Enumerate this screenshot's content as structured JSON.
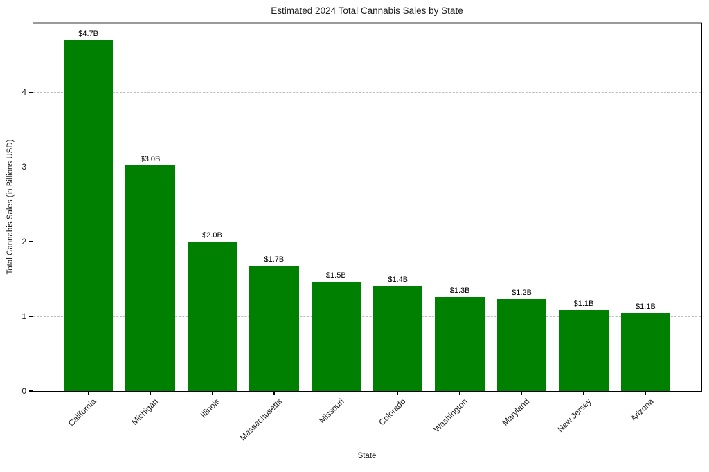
{
  "chart_data": {
    "type": "bar",
    "title": "Estimated 2024 Total Cannabis Sales by State",
    "xlabel": "State",
    "ylabel": "Total Cannabis Sales (in Billions USD)",
    "categories": [
      "California",
      "Michigan",
      "Illinois",
      "Massachusetts",
      "Missouri",
      "Colorado",
      "Washington",
      "Maryland",
      "New Jersey",
      "Arizona"
    ],
    "values": [
      4.7,
      3.02,
      2.0,
      1.68,
      1.46,
      1.41,
      1.26,
      1.23,
      1.08,
      1.05
    ],
    "bar_labels": [
      "$4.7B",
      "$3.0B",
      "$2.0B",
      "$1.7B",
      "$1.5B",
      "$1.4B",
      "$1.3B",
      "$1.2B",
      "$1.1B",
      "$1.1B"
    ],
    "yticks": [
      0,
      1,
      2,
      3,
      4
    ],
    "ylim": [
      0,
      4.93
    ],
    "bar_color": "#008000",
    "grid": {
      "axis": "y",
      "style": "dashed",
      "color": "#bdbdbd"
    },
    "legend_position": "none"
  }
}
